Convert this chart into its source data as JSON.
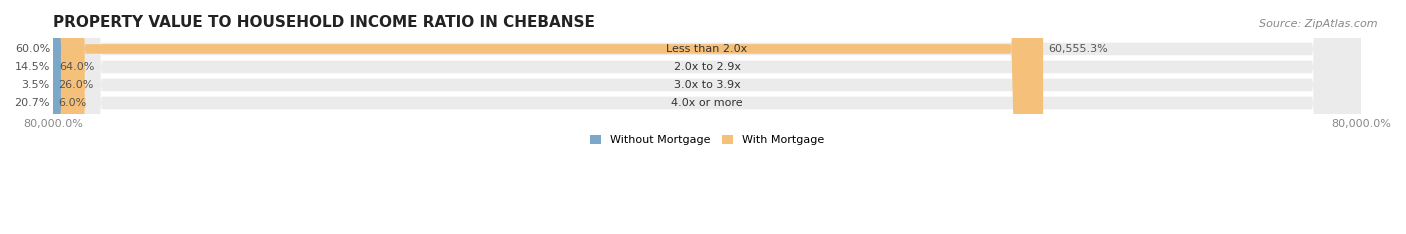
{
  "title": "PROPERTY VALUE TO HOUSEHOLD INCOME RATIO IN CHEBANSE",
  "source": "Source: ZipAtlas.com",
  "categories": [
    "Less than 2.0x",
    "2.0x to 2.9x",
    "3.0x to 3.9x",
    "4.0x or more"
  ],
  "without_mortgage": [
    60.0,
    14.5,
    3.5,
    20.7
  ],
  "with_mortgage": [
    60555.3,
    64.0,
    26.0,
    6.0
  ],
  "with_mortgage_labels": [
    "60,555.3%",
    "64.0%",
    "26.0%",
    "6.0%"
  ],
  "without_mortgage_labels": [
    "60.0%",
    "14.5%",
    "3.5%",
    "20.7%"
  ],
  "color_without": "#7ba7c9",
  "color_with": "#f5c07a",
  "xlim_label": "80,000.0%",
  "background_bar": "#ebebeb",
  "bar_bg": "#f0f0f0",
  "title_fontsize": 11,
  "source_fontsize": 8,
  "label_fontsize": 8,
  "legend_fontsize": 8,
  "axis_label_fontsize": 8,
  "max_val": 80000.0
}
